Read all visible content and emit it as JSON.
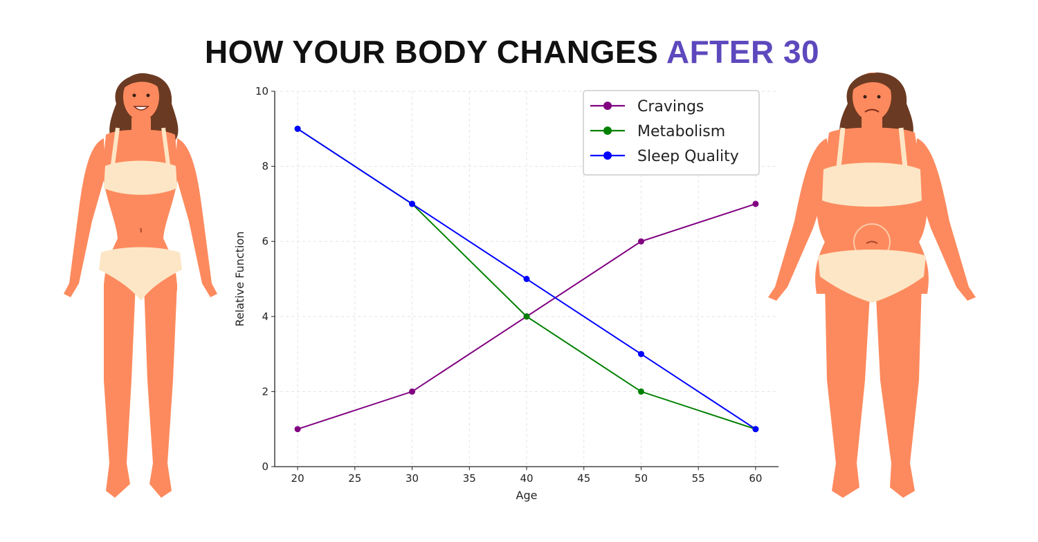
{
  "header": {
    "title_main": "HOW YOUR BODY CHANGES",
    "title_accent": "AFTER 30"
  },
  "colors": {
    "skin": "#fd8a5e",
    "underwear": "#fde6c6",
    "hair": "#6b3a22",
    "accent": "#5e48bd"
  },
  "figures": {
    "left": {
      "icon": "woman-slim-smiling-figure"
    },
    "right": {
      "icon": "woman-heavier-sad-figure"
    }
  },
  "chart_data": {
    "type": "line",
    "x": [
      20,
      30,
      40,
      50,
      60
    ],
    "series": [
      {
        "name": "Cravings",
        "values": [
          1,
          2,
          4,
          6,
          7
        ],
        "color": "#800080"
      },
      {
        "name": "Metabolism",
        "values": [
          9,
          7,
          4,
          2,
          1
        ],
        "color": "#008000"
      },
      {
        "name": "Sleep Quality",
        "values": [
          9,
          7,
          5,
          3,
          1
        ],
        "color": "#0000ff"
      }
    ],
    "xlabel": "Age",
    "ylabel": "Relative Function",
    "xlim": [
      18,
      62
    ],
    "ylim": [
      0,
      10
    ],
    "xticks": [
      20,
      25,
      30,
      35,
      40,
      45,
      50,
      55,
      60
    ],
    "yticks": [
      0,
      2,
      4,
      6,
      8,
      10
    ],
    "grid": true,
    "legend_position": "top-right"
  }
}
